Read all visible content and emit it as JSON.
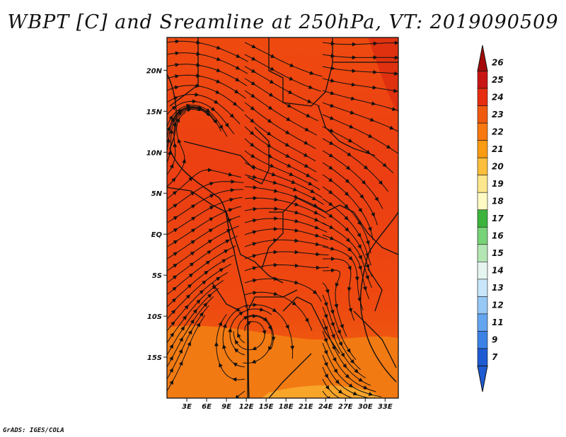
{
  "title": "WBPT [C] and Sreamline at 250hPa, VT: 2019090509",
  "credit": "GrADS: IGES/COLA",
  "map": {
    "lon_range": [
      0,
      35
    ],
    "lat_range": [
      -20,
      24
    ],
    "x_ticks": [
      "3E",
      "6E",
      "9E",
      "12E",
      "15E",
      "18E",
      "21E",
      "24E",
      "27E",
      "30E",
      "33E"
    ],
    "x_tick_values": [
      3,
      6,
      9,
      12,
      15,
      18,
      21,
      24,
      27,
      30,
      33
    ],
    "y_ticks": [
      "20N",
      "15N",
      "10N",
      "5N",
      "EQ",
      "5S",
      "10S",
      "15S"
    ],
    "y_tick_values": [
      20,
      15,
      10,
      5,
      0,
      -5,
      -10,
      -15
    ]
  },
  "colorbar": {
    "levels": [
      "26",
      "25",
      "24",
      "23",
      "22",
      "21",
      "20",
      "19",
      "18",
      "17",
      "16",
      "15",
      "14",
      "13",
      "12",
      "11",
      "9",
      "7"
    ],
    "colors": [
      "#a50a0a",
      "#c81414",
      "#e62d10",
      "#f05a0f",
      "#f8780f",
      "#fa9b14",
      "#fdbe3c",
      "#fee68c",
      "#fffac3",
      "#3cb43c",
      "#78d278",
      "#b4e6b4",
      "#e6f5f0",
      "#c8e6fa",
      "#96c8f5",
      "#64a5f0",
      "#3c82e6",
      "#1e5ad2"
    ]
  }
}
